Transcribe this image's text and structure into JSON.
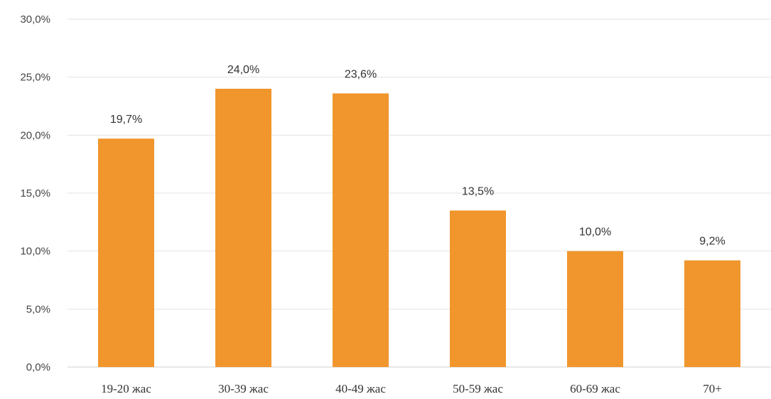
{
  "chart_data": {
    "type": "bar",
    "title": "",
    "xlabel": "",
    "ylabel": "",
    "categories": [
      "19-20 жас",
      "30-39 жас",
      "40-49 жас",
      "50-59 жас",
      "60-69 жас",
      "70+"
    ],
    "values": [
      19.7,
      24.0,
      23.6,
      13.5,
      10.0,
      9.2
    ],
    "data_labels": [
      "19,7%",
      "24,0%",
      "23,6%",
      "13,5%",
      "10,0%",
      "9,2%"
    ],
    "ylim": [
      0,
      30
    ],
    "yticks": [
      0,
      5,
      10,
      15,
      20,
      25,
      30
    ],
    "ytick_labels": [
      "0,0%",
      "5,0%",
      "10,0%",
      "15,0%",
      "20,0%",
      "25,0%",
      "30,0%"
    ],
    "grid": true,
    "legend": "none",
    "bar_color": "#F0962D"
  }
}
